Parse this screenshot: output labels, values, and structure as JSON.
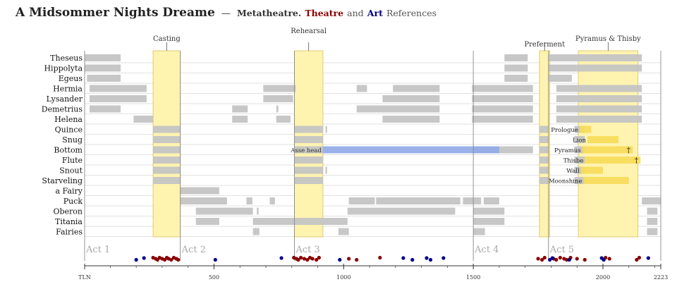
{
  "header": {
    "title": "A Midsommer Nights Dreame",
    "dash": "—",
    "subtitle_prefix": "Metatheatre.",
    "theatre": "Theatre",
    "and": "and",
    "art": "Art",
    "references": "References"
  },
  "colors": {
    "bar": "#c4c4c4",
    "highlight": "#fff3b0",
    "highlight_border": "#d8c060",
    "ass_head": "#8fa8e8",
    "pyramus": "#f7dc58",
    "theatre_dot": "#8b0000",
    "art_dot": "#00008b",
    "act_text": "#aaaaaa"
  },
  "chart_data": {
    "type": "timeline",
    "x_axis": {
      "label": "TLN",
      "range": [
        1,
        2223
      ],
      "ticks": [
        500,
        1000,
        1500,
        2000,
        2223
      ]
    },
    "characters": [
      "Theseus",
      "Hippolyta",
      "Egeus",
      "Hermia",
      "Lysander",
      "Demetrius",
      "Helena",
      "Quince",
      "Snug",
      "Bottom",
      "Flute",
      "Snout",
      "Starveling",
      "a Fairy",
      "Puck",
      "Oberon",
      "Titania",
      "Fairies"
    ],
    "presence": {
      "Theseus": [
        [
          1,
          140
        ],
        [
          1620,
          1710
        ],
        [
          1790,
          2150
        ]
      ],
      "Hippolyta": [
        [
          1,
          140
        ],
        [
          1620,
          1710
        ],
        [
          1790,
          2150
        ]
      ],
      "Egeus": [
        [
          10,
          140
        ],
        [
          1620,
          1710
        ],
        [
          1790,
          1880
        ]
      ],
      "Hermia": [
        [
          20,
          240
        ],
        [
          690,
          815
        ],
        [
          1050,
          1090
        ],
        [
          1190,
          1370
        ],
        [
          1495,
          1730
        ],
        [
          1820,
          2150
        ]
      ],
      "Lysander": [
        [
          20,
          240
        ],
        [
          690,
          805
        ],
        [
          1150,
          1370
        ],
        [
          1495,
          1730
        ],
        [
          1820,
          2150
        ]
      ],
      "Demetrius": [
        [
          20,
          140
        ],
        [
          570,
          630
        ],
        [
          740,
          748
        ],
        [
          1050,
          1370
        ],
        [
          1495,
          1730
        ],
        [
          1820,
          2150
        ]
      ],
      "Helena": [
        [
          190,
          265
        ],
        [
          570,
          630
        ],
        [
          740,
          795
        ],
        [
          1150,
          1370
        ],
        [
          1495,
          1730
        ],
        [
          1820,
          2150
        ]
      ],
      "Quince": [
        [
          265,
          370
        ],
        [
          810,
          920
        ],
        [
          930,
          936
        ],
        [
          1755,
          1790
        ],
        [
          1890,
          1930
        ]
      ],
      "Snug": [
        [
          265,
          370
        ],
        [
          810,
          920
        ],
        [
          1755,
          1790
        ],
        [
          1890,
          1930
        ]
      ],
      "Bottom": [
        [
          265,
          370
        ],
        [
          810,
          920
        ],
        [
          1500,
          1595
        ],
        [
          1595,
          1730
        ],
        [
          1755,
          1790
        ],
        [
          1890,
          1930
        ]
      ],
      "Flute": [
        [
          265,
          370
        ],
        [
          810,
          920
        ],
        [
          1755,
          1790
        ],
        [
          1890,
          1930
        ]
      ],
      "Snout": [
        [
          265,
          370
        ],
        [
          810,
          920
        ],
        [
          930,
          936
        ],
        [
          1755,
          1790
        ],
        [
          1890,
          1930
        ]
      ],
      "Starveling": [
        [
          265,
          370
        ],
        [
          810,
          920
        ],
        [
          1755,
          1790
        ],
        [
          1890,
          1930
        ]
      ],
      "a Fairy": [
        [
          370,
          520
        ]
      ],
      "Puck": [
        [
          370,
          550
        ],
        [
          625,
          648
        ],
        [
          715,
          735
        ],
        [
          1020,
          1120
        ],
        [
          1125,
          1450
        ],
        [
          1460,
          1530
        ],
        [
          1540,
          1600
        ],
        [
          2150,
          2223
        ]
      ],
      "Oberon": [
        [
          430,
          650
        ],
        [
          665,
          672
        ],
        [
          1015,
          1430
        ],
        [
          1500,
          1620
        ],
        [
          2170,
          2210
        ]
      ],
      "Titania": [
        [
          430,
          520
        ],
        [
          650,
          1015
        ],
        [
          1500,
          1620
        ],
        [
          2170,
          2210
        ]
      ],
      "Fairies": [
        [
          650,
          675
        ],
        [
          980,
          1020
        ],
        [
          1500,
          1545
        ],
        [
          2170,
          2210
        ]
      ]
    },
    "highlights": [
      {
        "label": "Casting",
        "range": [
          265,
          370
        ]
      },
      {
        "label": "Rehearsal",
        "range": [
          810,
          920
        ]
      },
      {
        "label": "Preferment",
        "range": [
          1755,
          1795
        ]
      },
      {
        "label": "Pyramus & Thisby",
        "range": [
          1905,
          2135
        ]
      }
    ],
    "ass_head": {
      "label": "Asse head",
      "character": "Bottom",
      "range": [
        920,
        1600
      ]
    },
    "play_within": [
      {
        "label": "Prologue",
        "character": "Quince",
        "range": [
          1910,
          1955
        ]
      },
      {
        "label": "Lion",
        "character": "Snug",
        "range": [
          1940,
          2060
        ]
      },
      {
        "label": "Pyramus",
        "character": "Bottom",
        "range": [
          1920,
          2115
        ],
        "dagger": true
      },
      {
        "label": "Thisbe",
        "character": "Flute",
        "range": [
          1930,
          2145
        ],
        "dagger": true
      },
      {
        "label": "Wall",
        "character": "Snout",
        "range": [
          1915,
          2000
        ]
      },
      {
        "label": "Moonshine",
        "character": "Starveling",
        "range": [
          1925,
          2100
        ]
      }
    ],
    "acts": [
      {
        "label": "Act 1",
        "tln": 1
      },
      {
        "label": "Act 2",
        "tln": 370
      },
      {
        "label": "Act 3",
        "tln": 810
      },
      {
        "label": "Act 4",
        "tln": 1500
      },
      {
        "label": "Act 5",
        "tln": 1790
      }
    ],
    "references": {
      "theatre": [
        265,
        275,
        282,
        290,
        300,
        310,
        318,
        325,
        335,
        345,
        355,
        362,
        808,
        818,
        825,
        835,
        848,
        860,
        870,
        880,
        895,
        905,
        1020,
        1050,
        1140,
        1750,
        1765,
        1775,
        1810,
        1820,
        1835,
        1850,
        1860,
        1875,
        1900,
        1930,
        2010,
        2025,
        2130,
        2140
      ],
      "art": [
        200,
        230,
        505,
        760,
        985,
        1230,
        1265,
        1320,
        1335,
        1385,
        1795,
        1805,
        1870,
        1995,
        2003,
        2175
      ]
    }
  }
}
